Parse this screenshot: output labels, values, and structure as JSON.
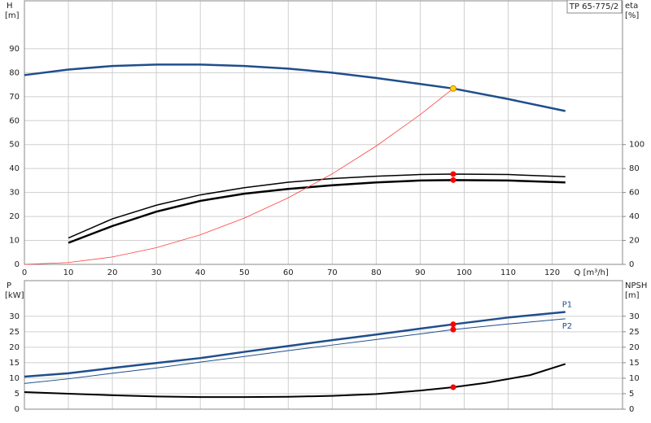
{
  "chart_data": [
    {
      "type": "line",
      "title": "TP 65-775/2",
      "ylabel": "H",
      "yunit": "[m]",
      "y2label": "eta",
      "y2unit": "[%]",
      "xlabel": "Q [m³/h]",
      "xlim": [
        0,
        136
      ],
      "xticks": [
        0,
        10,
        20,
        30,
        40,
        50,
        60,
        70,
        80,
        90,
        100,
        110,
        120
      ],
      "ylim": [
        0,
        110
      ],
      "yticks": [
        0,
        10,
        20,
        30,
        40,
        50,
        60,
        70,
        80,
        90
      ],
      "y2lim": [
        0,
        220
      ],
      "y2ticks": [
        0,
        20,
        40,
        60,
        80,
        100
      ],
      "grid": true,
      "series": [
        {
          "color": "#1f4e8c",
          "linewidth": 2.5,
          "x": [
            0,
            10,
            20,
            30,
            40,
            50,
            60,
            70,
            80,
            90,
            97.5,
            110,
            123
          ],
          "values": [
            79,
            81.3,
            82.8,
            83.4,
            83.4,
            82.8,
            81.7,
            80,
            77.8,
            75.3,
            73.4,
            69,
            64
          ]
        },
        {
          "color": "#000000",
          "linewidth": 1.5,
          "axis": "y2",
          "x": [
            10,
            20,
            30,
            40,
            50,
            60,
            70,
            80,
            90,
            97.5,
            110,
            123
          ],
          "values": [
            22,
            38,
            49.4,
            58,
            64,
            68.6,
            71.6,
            73.6,
            75,
            75.4,
            75,
            73.2
          ]
        },
        {
          "color": "#000000",
          "linewidth": 2.5,
          "axis": "y2",
          "x": [
            10,
            20,
            30,
            40,
            50,
            60,
            70,
            80,
            90,
            97.5,
            110,
            123
          ],
          "values": [
            18,
            32,
            44,
            53,
            59,
            63,
            66,
            68.4,
            70,
            70.4,
            70,
            68.4
          ]
        },
        {
          "color": "#ff4040",
          "linewidth": 0.8,
          "x": [
            0,
            10,
            20,
            30,
            40,
            50,
            60,
            70,
            80,
            90,
            97.5
          ],
          "values": [
            0,
            0.77,
            3.09,
            6.95,
            12.35,
            19.3,
            27.8,
            37.8,
            49.4,
            62.5,
            73.4
          ]
        }
      ],
      "markers": [
        {
          "x": 97.5,
          "y": 73.4,
          "color": "#ffd700"
        },
        {
          "x": 97.5,
          "y": 75.4,
          "color": "#ff0000",
          "axis": "y2"
        },
        {
          "x": 97.5,
          "y": 70.4,
          "color": "#ff0000",
          "axis": "y2"
        }
      ]
    },
    {
      "type": "line",
      "ylabel": "P",
      "yunit": "[kW]",
      "y2label": "NPSH",
      "y2unit": "[m]",
      "xlim": [
        0,
        136
      ],
      "xticks": [
        0,
        10,
        20,
        30,
        40,
        50,
        60,
        70,
        80,
        90,
        100,
        110,
        120
      ],
      "ylim": [
        0,
        41.5
      ],
      "yticks": [
        0,
        5,
        10,
        15,
        20,
        25,
        30
      ],
      "y2lim": [
        0,
        41.5
      ],
      "y2ticks": [
        0,
        5,
        10,
        15,
        20,
        25,
        30
      ],
      "grid": true,
      "series": [
        {
          "name": "P1",
          "color": "#1f4e8c",
          "linewidth": 2.5,
          "x": [
            0,
            10,
            20,
            30,
            40,
            50,
            60,
            70,
            80,
            90,
            97.5,
            110,
            123
          ],
          "values": [
            10.5,
            11.6,
            13.3,
            14.9,
            16.5,
            18.5,
            20.4,
            22.3,
            24.1,
            26,
            27.4,
            29.6,
            31.4
          ]
        },
        {
          "name": "P2",
          "color": "#1f4e8c",
          "linewidth": 1,
          "x": [
            0,
            10,
            20,
            30,
            40,
            50,
            60,
            70,
            80,
            90,
            97.5,
            110,
            123
          ],
          "values": [
            8.3,
            9.8,
            11.6,
            13.3,
            15.2,
            17,
            18.9,
            20.7,
            22.5,
            24.3,
            25.7,
            27.5,
            29.2
          ]
        },
        {
          "color": "#000000",
          "linewidth": 2,
          "axis": "y2",
          "x": [
            0,
            10,
            20,
            30,
            40,
            50,
            60,
            70,
            80,
            90,
            97.5,
            105,
            115,
            123
          ],
          "values": [
            5.5,
            5,
            4.5,
            4.1,
            3.9,
            3.9,
            4,
            4.3,
            4.9,
            6,
            7.1,
            8.5,
            11,
            14.6
          ]
        }
      ],
      "markers": [
        {
          "x": 97.5,
          "y": 27.4,
          "color": "#ff0000"
        },
        {
          "x": 97.5,
          "y": 25.7,
          "color": "#ff0000"
        },
        {
          "x": 97.5,
          "y": 7.1,
          "color": "#ff0000",
          "axis": "y2"
        }
      ]
    }
  ]
}
